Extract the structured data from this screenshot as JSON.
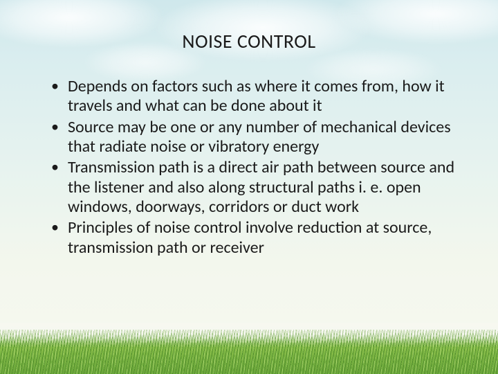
{
  "slide": {
    "title": "NOISE CONTROL",
    "bullets": [
      "Depends on factors such as where it comes from, how it travels and what can be done about it",
      "Source may be one or any number of mechanical devices that radiate noise or vibratory energy",
      "Transmission path is a direct air path between source and the listener and also along structural paths i. e. open windows, doorways, corridors or duct work",
      "Principles of noise control involve  reduction at source, transmission path or receiver"
    ]
  },
  "style": {
    "title_fontsize": 28,
    "body_fontsize": 24,
    "text_color": "#1a1a1a",
    "sky_top": "#cfe8ec",
    "sky_bottom": "#f7f8f0",
    "grass_light": "#a6d36b",
    "grass_mid": "#8abf4a",
    "grass_dark": "#4e8a2a",
    "font_family": "Calibri"
  }
}
